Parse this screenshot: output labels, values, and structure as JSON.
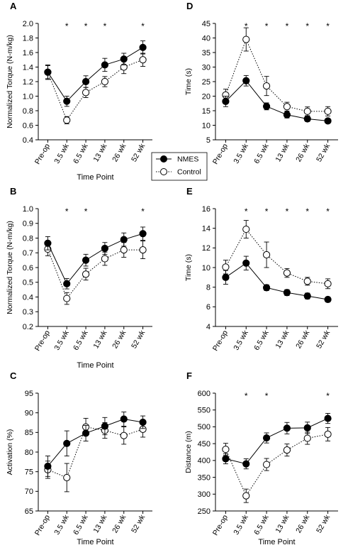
{
  "legend": {
    "position": "center",
    "entries": [
      {
        "label": "NMES",
        "style": "filled-circle-solid-line"
      },
      {
        "label": "Control",
        "style": "open-circle-dotted-line"
      }
    ]
  },
  "colors": {
    "line": "#000000",
    "background": "#ffffff"
  },
  "chart_data": [
    {
      "panel": "A",
      "type": "line",
      "x": [
        "Pre-op",
        "3.5 wk",
        "6.5 wk",
        "13 wk",
        "26 wk",
        "52 wk"
      ],
      "xlabel": "Time Point",
      "ylabel": "Normalized Torque (N-m/kg)",
      "ylim": [
        0.4,
        2.0
      ],
      "yticks": [
        0.4,
        0.6,
        0.8,
        1.0,
        1.2,
        1.4,
        1.6,
        1.8,
        2.0
      ],
      "ydecimals": 1,
      "significance": [
        false,
        true,
        true,
        true,
        false,
        true
      ],
      "series": [
        {
          "name": "NMES",
          "values": [
            1.33,
            0.93,
            1.2,
            1.43,
            1.51,
            1.67
          ],
          "errors": [
            0.09,
            0.07,
            0.08,
            0.09,
            0.08,
            0.09
          ]
        },
        {
          "name": "Control",
          "values": [
            1.33,
            0.67,
            1.05,
            1.2,
            1.4,
            1.5
          ],
          "errors": [
            0.1,
            0.05,
            0.07,
            0.07,
            0.09,
            0.09
          ]
        }
      ]
    },
    {
      "panel": "D",
      "type": "line",
      "x": [
        "Pre-op",
        "3.5 wk",
        "6.5 wk",
        "13 wk",
        "26 wk",
        "52 wk"
      ],
      "xlabel": "",
      "ylabel": "Time (s)",
      "ylim": [
        5,
        45
      ],
      "yticks": [
        5,
        10,
        15,
        20,
        25,
        30,
        35,
        40,
        45
      ],
      "ydecimals": 0,
      "significance": [
        false,
        true,
        true,
        true,
        true,
        true
      ],
      "series": [
        {
          "name": "NMES",
          "values": [
            18.2,
            25.3,
            16.5,
            13.6,
            12.2,
            11.5
          ],
          "errors": [
            1.8,
            1.8,
            1.2,
            1.1,
            0.9,
            0.8
          ]
        },
        {
          "name": "Control",
          "values": [
            20.4,
            39.5,
            23.5,
            16.4,
            14.8,
            14.8
          ],
          "errors": [
            2.0,
            4.0,
            3.3,
            1.5,
            1.5,
            1.6
          ]
        }
      ]
    },
    {
      "panel": "B",
      "type": "line",
      "x": [
        "Pre-op",
        "3.5 wk",
        "6.5 wk",
        "13 wk",
        "26 wk",
        "52 wk"
      ],
      "xlabel": "Time Point",
      "ylabel": "Normalized Torque (N-m/kg)",
      "ylim": [
        0.2,
        1.0
      ],
      "yticks": [
        0.2,
        0.3,
        0.4,
        0.5,
        0.6,
        0.7,
        0.8,
        0.9,
        1.0
      ],
      "ydecimals": 1,
      "significance": [
        false,
        true,
        true,
        false,
        false,
        true
      ],
      "series": [
        {
          "name": "NMES",
          "values": [
            0.765,
            0.49,
            0.65,
            0.73,
            0.79,
            0.83
          ],
          "errors": [
            0.045,
            0.035,
            0.04,
            0.04,
            0.045,
            0.045
          ]
        },
        {
          "name": "Control",
          "values": [
            0.725,
            0.39,
            0.555,
            0.66,
            0.72,
            0.72
          ],
          "errors": [
            0.045,
            0.04,
            0.04,
            0.045,
            0.05,
            0.06
          ]
        }
      ]
    },
    {
      "panel": "E",
      "type": "line",
      "x": [
        "Pre-op",
        "3.5 wk",
        "6.5 wk",
        "13 wk",
        "26 wk",
        "52 wk"
      ],
      "xlabel": "",
      "ylabel": "Time (s)",
      "ylim": [
        4,
        16
      ],
      "yticks": [
        4,
        6,
        8,
        10,
        12,
        14,
        16
      ],
      "ydecimals": 0,
      "significance": [
        false,
        true,
        true,
        true,
        true,
        true
      ],
      "series": [
        {
          "name": "NMES",
          "values": [
            9.0,
            10.45,
            7.95,
            7.45,
            7.1,
            6.75
          ],
          "errors": [
            0.7,
            0.7,
            0.3,
            0.3,
            0.3,
            0.25
          ]
        },
        {
          "name": "Control",
          "values": [
            10.05,
            13.9,
            11.3,
            9.45,
            8.6,
            8.35
          ],
          "errors": [
            0.7,
            0.9,
            1.3,
            0.45,
            0.4,
            0.5
          ]
        }
      ]
    },
    {
      "panel": "C",
      "type": "line",
      "x": [
        "Pre-op",
        "3.5 wk",
        "6.5 wk",
        "13 wk",
        "26 wk",
        "52 wk"
      ],
      "xlabel": "Time Point",
      "ylabel": "Activation (%)",
      "ylim": [
        65,
        95
      ],
      "yticks": [
        65,
        70,
        75,
        80,
        85,
        90,
        95
      ],
      "ydecimals": 0,
      "significance": [
        false,
        false,
        false,
        false,
        false,
        false
      ],
      "series": [
        {
          "name": "NMES",
          "values": [
            76.4,
            82.2,
            84.8,
            86.6,
            88.4,
            87.6
          ],
          "errors": [
            2.6,
            3.2,
            2.0,
            2.2,
            1.8,
            1.6
          ]
        },
        {
          "name": "Control",
          "values": [
            75.5,
            73.5,
            86.4,
            85.5,
            84.2,
            85.8
          ],
          "errors": [
            2.2,
            3.6,
            2.2,
            2.0,
            2.2,
            2.0
          ]
        }
      ]
    },
    {
      "panel": "F",
      "type": "line",
      "x": [
        "Pre-op",
        "3.5 wk",
        "6.5 wk",
        "13 wk",
        "26 wk",
        "52 wk"
      ],
      "xlabel": "Time Point",
      "ylabel": "Distance (m)",
      "ylim": [
        250,
        600
      ],
      "yticks": [
        250,
        300,
        350,
        400,
        450,
        500,
        550,
        600
      ],
      "ydecimals": 0,
      "significance": [
        false,
        true,
        true,
        false,
        false,
        true
      ],
      "series": [
        {
          "name": "NMES",
          "values": [
            405,
            390,
            467,
            496,
            497,
            525
          ],
          "errors": [
            15,
            15,
            15,
            17,
            17,
            15
          ]
        },
        {
          "name": "Control",
          "values": [
            433,
            295,
            388,
            431,
            466,
            478
          ],
          "errors": [
            18,
            20,
            18,
            18,
            18,
            20
          ]
        }
      ]
    }
  ]
}
